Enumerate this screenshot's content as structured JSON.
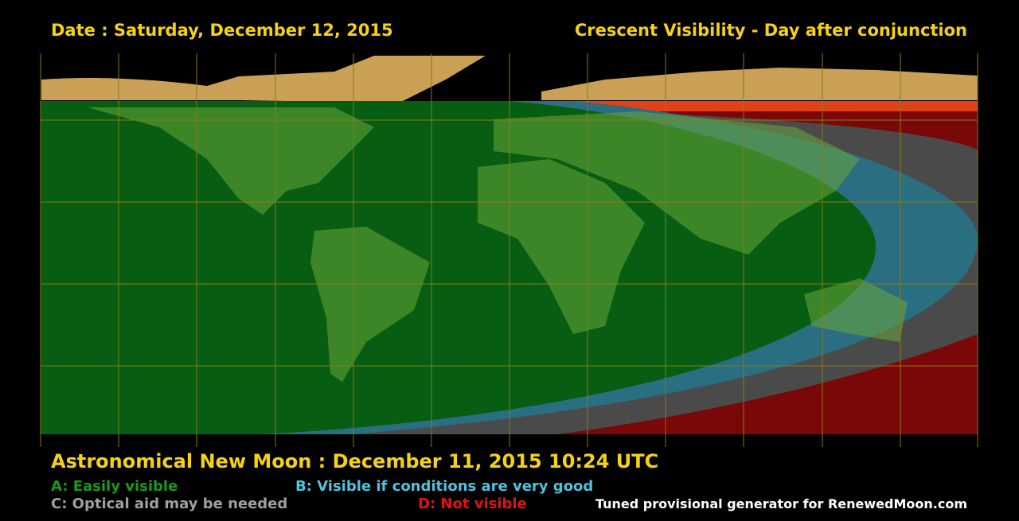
{
  "header": {
    "date": "Date : Saturday, December 12, 2015",
    "title": "Crescent Visibility - Day after conjunction"
  },
  "footer": {
    "new_moon": "Astronomical New Moon : December 11, 2015 10:24 UTC",
    "legend": {
      "a": "A: Easily visible",
      "b": "B: Visible if conditions are very good",
      "c": "C: Optical aid may be needed",
      "d": "D: Not visible"
    },
    "credit": "Tuned provisional generator for RenewedMoon.com"
  }
}
